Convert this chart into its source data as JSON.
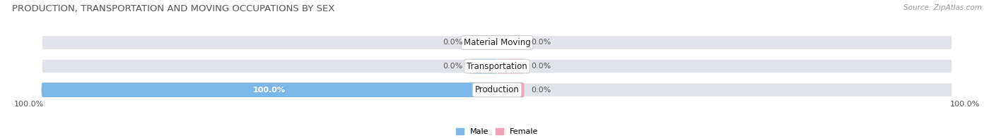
{
  "title": "PRODUCTION, TRANSPORTATION AND MOVING OCCUPATIONS BY SEX",
  "source": "Source: ZipAtlas.com",
  "categories": [
    "Production",
    "Transportation",
    "Material Moving"
  ],
  "male_values": [
    100.0,
    0.0,
    0.0
  ],
  "female_values": [
    0.0,
    0.0,
    0.0
  ],
  "male_color": "#7bb8e8",
  "female_color": "#f4a0b8",
  "bar_bg_color": "#e2e4ea",
  "bar_height": 0.62,
  "title_fontsize": 9.5,
  "label_fontsize": 8.0,
  "category_fontsize": 8.5,
  "source_fontsize": 7.5,
  "x_left_label": "100.0%",
  "x_right_label": "100.0%",
  "legend_male": "Male",
  "legend_female": "Female",
  "bg_color": "#f5f5f7"
}
